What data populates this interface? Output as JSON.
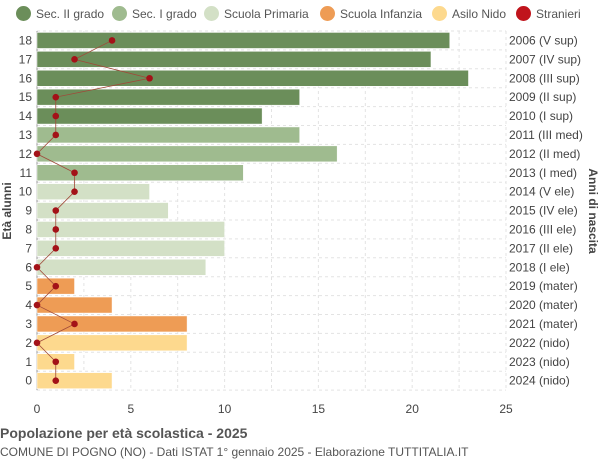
{
  "chart_data": {
    "type": "bar",
    "orientation": "horizontal",
    "title": "Popolazione per età scolastica - 2025",
    "subtitle": "COMUNE DI POGNO (NO) - Dati ISTAT 1° gennaio 2025 - Elaborazione TUTTITALIA.IT",
    "ylabel_left": "Età alunni",
    "ylabel_right": "Anni di nascita",
    "xlim": [
      0,
      25
    ],
    "xticks": [
      "0",
      "5",
      "10",
      "15",
      "20",
      "25"
    ],
    "grid": true,
    "legend_position": "top",
    "legend": [
      {
        "name": "Sec. II grado",
        "color": "#6b8e5a"
      },
      {
        "name": "Sec. I grado",
        "color": "#9fbb8f"
      },
      {
        "name": "Scuola Primaria",
        "color": "#d3e0c6"
      },
      {
        "name": "Scuola Infanzia",
        "color": "#ee9c55"
      },
      {
        "name": "Asilo Nido",
        "color": "#fdd98e"
      },
      {
        "name": "Stranieri",
        "color": "#c0141c"
      }
    ],
    "rows": [
      {
        "age": "18",
        "birth": "2006 (V sup)",
        "value": 22,
        "stranieri": 4,
        "cat": 0
      },
      {
        "age": "17",
        "birth": "2007 (IV sup)",
        "value": 21,
        "stranieri": 2,
        "cat": 0
      },
      {
        "age": "16",
        "birth": "2008 (III sup)",
        "value": 23,
        "stranieri": 6,
        "cat": 0
      },
      {
        "age": "15",
        "birth": "2009 (II sup)",
        "value": 14,
        "stranieri": 1,
        "cat": 0
      },
      {
        "age": "14",
        "birth": "2010 (I sup)",
        "value": 12,
        "stranieri": 1,
        "cat": 0
      },
      {
        "age": "13",
        "birth": "2011 (III med)",
        "value": 14,
        "stranieri": 1,
        "cat": 1
      },
      {
        "age": "12",
        "birth": "2012 (II med)",
        "value": 16,
        "stranieri": 0,
        "cat": 1
      },
      {
        "age": "11",
        "birth": "2013 (I med)",
        "value": 11,
        "stranieri": 2,
        "cat": 1
      },
      {
        "age": "10",
        "birth": "2014 (V ele)",
        "value": 6,
        "stranieri": 2,
        "cat": 2
      },
      {
        "age": "9",
        "birth": "2015 (IV ele)",
        "value": 7,
        "stranieri": 1,
        "cat": 2
      },
      {
        "age": "8",
        "birth": "2016 (III ele)",
        "value": 10,
        "stranieri": 1,
        "cat": 2
      },
      {
        "age": "7",
        "birth": "2017 (II ele)",
        "value": 10,
        "stranieri": 1,
        "cat": 2
      },
      {
        "age": "6",
        "birth": "2018 (I ele)",
        "value": 9,
        "stranieri": 0,
        "cat": 2
      },
      {
        "age": "5",
        "birth": "2019 (mater)",
        "value": 2,
        "stranieri": 1,
        "cat": 3
      },
      {
        "age": "4",
        "birth": "2020 (mater)",
        "value": 4,
        "stranieri": 0,
        "cat": 3
      },
      {
        "age": "3",
        "birth": "2021 (mater)",
        "value": 8,
        "stranieri": 2,
        "cat": 3
      },
      {
        "age": "2",
        "birth": "2022 (nido)",
        "value": 8,
        "stranieri": 0,
        "cat": 4
      },
      {
        "age": "1",
        "birth": "2023 (nido)",
        "value": 2,
        "stranieri": 1,
        "cat": 4
      },
      {
        "age": "0",
        "birth": "2024 (nido)",
        "value": 4,
        "stranieri": 1,
        "cat": 4
      }
    ]
  }
}
